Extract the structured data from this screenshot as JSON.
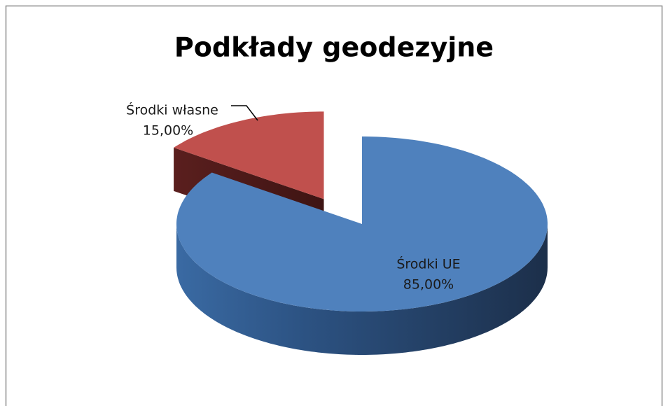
{
  "chart_data": {
    "type": "pie",
    "title": "Podkłady geodezyjne",
    "categories": [
      "Środki UE",
      "Środki własne"
    ],
    "values": [
      85,
      15
    ],
    "value_labels": [
      "85,00%",
      "15,00%"
    ],
    "colors": [
      "#4f81bd",
      "#c0504d"
    ]
  }
}
